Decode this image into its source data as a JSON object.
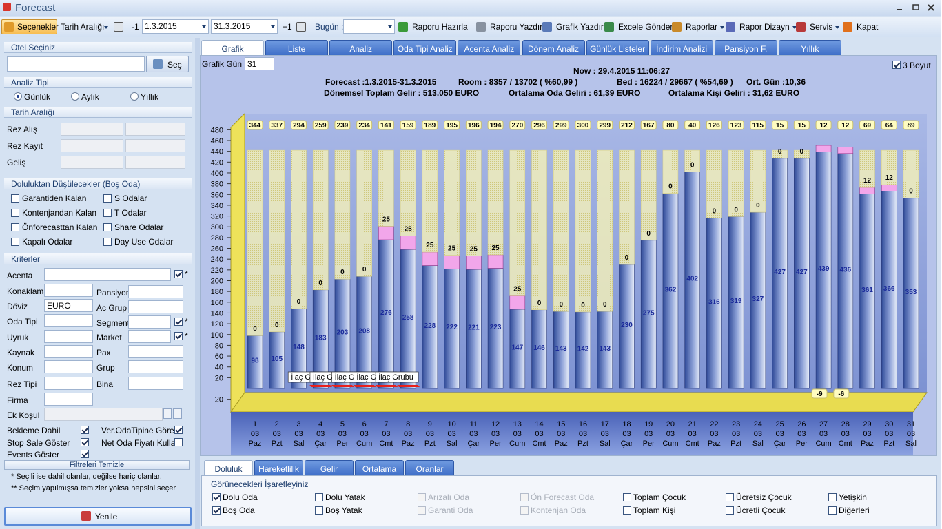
{
  "window": {
    "title": "Forecast"
  },
  "toolbar": {
    "options": "Seçenekler",
    "date_range": "Tarih Aralığı",
    "prev": "-1",
    "start": "1.3.2015",
    "end": "31.3.2015",
    "next": "+1",
    "today": "Bugün :",
    "buttons": [
      "Raporu Hazırla",
      "Raporu Yazdır",
      "Grafik Yazdır",
      "Excele Gönder",
      "Raporlar",
      "Rapor Dizayn",
      "Servis",
      "Kapat"
    ]
  },
  "left": {
    "hotel": {
      "title": "Otel Seçiniz",
      "button": "Seç"
    },
    "analysis": {
      "title": "Analiz Tipi",
      "options": [
        "Günlük",
        "Aylık",
        "Yıllık"
      ],
      "selected": 0
    },
    "dates": {
      "title": "Tarih Aralığı",
      "rows": [
        "Rez Alış",
        "Rez Kayıt",
        "Geliş"
      ]
    },
    "deduct": {
      "title": "Doluluktan Düşülecekler (Boş Oda)",
      "items": [
        "Garantiden Kalan",
        "S Odalar",
        "Kontenjandan Kalan",
        "T Odalar",
        "Önforecasttan Kalan",
        "Share Odalar",
        "Kapalı Odalar",
        "Day Use Odalar"
      ]
    },
    "criteria": {
      "title": "Kriterler",
      "fields": [
        {
          "label": "Acenta",
          "checked": true,
          "mark": "*"
        },
        {
          "label": "Konaklama"
        },
        {
          "label": "Pansiyon"
        },
        {
          "label": "Döviz",
          "value": "EURO"
        },
        {
          "label": "Ac Grup"
        },
        {
          "label": "Oda Tipi"
        },
        {
          "label": "Segment",
          "checked": true,
          "mark": "*"
        },
        {
          "label": "Uyruk"
        },
        {
          "label": "Market",
          "checked": true,
          "mark": "*"
        },
        {
          "label": "Kaynak"
        },
        {
          "label": "Pax"
        },
        {
          "label": "Konum"
        },
        {
          "label": "Grup"
        },
        {
          "label": "Rez Tipi"
        },
        {
          "label": "Bina"
        },
        {
          "label": "Firma"
        },
        {
          "label": "Ek Koşul"
        }
      ]
    },
    "options": [
      {
        "label": "Bekleme Dahil",
        "checked": true
      },
      {
        "label": "Ver.OdaTipine Göre",
        "checked": true
      },
      {
        "label": "Stop Sale Göster",
        "checked": true
      },
      {
        "label": "Net Oda Fiyatı Kullan",
        "checked": false
      },
      {
        "label": "Events Göster",
        "checked": true
      }
    ],
    "clear": "Filtreleri Temizle",
    "notes": [
      "*  Seçili ise dahil olanlar, değilse hariç olanlar.",
      "** Seçim yapılmışsa temizler yoksa hepsini seçer"
    ],
    "refresh": "Yenile"
  },
  "tabs": {
    "items": [
      "Grafik",
      "Liste",
      "Analiz",
      "Oda Tipi Analiz",
      "Acenta Analiz",
      "Dönem Analiz",
      "Günlük Listeler",
      "İndirim Analizi",
      "Pansiyon F.",
      "Yıllık"
    ],
    "active": 0
  },
  "chart_panel": {
    "days_label": "Grafik Gün",
    "days": 31,
    "three_d_label": "3 Boyut",
    "three_d": true,
    "now": "Now : 29.4.2015 11:06:27",
    "period": "Forecast :1.3.2015-31.3.2015",
    "room": "Room : 8357 / 13702 ( %60,99 )",
    "bed": "Bed : 16224 / 29667 ( %54,69 )",
    "avg_days": "Ort. Gün :10,36",
    "income": "Dönemsel Toplam Gelir : 513.050 EURO",
    "avg_room": "Ortalama Oda Geliri : 61,39 EURO",
    "avg_person": "Ortalama Kişi Geliri : 31,62 EURO"
  },
  "chart_data": {
    "type": "bar",
    "stacked": true,
    "categories": [
      "1",
      "2",
      "3",
      "4",
      "5",
      "6",
      "7",
      "8",
      "9",
      "10",
      "11",
      "12",
      "13",
      "14",
      "15",
      "16",
      "17",
      "18",
      "19",
      "20",
      "21",
      "22",
      "23",
      "24",
      "25",
      "26",
      "27",
      "28",
      "29",
      "30",
      "31"
    ],
    "months": [
      "03",
      "03",
      "03",
      "03",
      "03",
      "03",
      "03",
      "03",
      "03",
      "03",
      "03",
      "03",
      "03",
      "03",
      "03",
      "03",
      "03",
      "03",
      "03",
      "03",
      "03",
      "03",
      "03",
      "03",
      "03",
      "03",
      "03",
      "03",
      "03",
      "03",
      "03"
    ],
    "weekdays": [
      "Paz",
      "Pzt",
      "Sal",
      "Çar",
      "Per",
      "Cum",
      "Cmt",
      "Paz",
      "Pzt",
      "Sal",
      "Çar",
      "Per",
      "Cum",
      "Cmt",
      "Paz",
      "Pzt",
      "Sal",
      "Çar",
      "Per",
      "Cum",
      "Cmt",
      "Paz",
      "Pzt",
      "Sal",
      "Çar",
      "Per",
      "Cum",
      "Cmt",
      "Paz",
      "Pzt",
      "Sal"
    ],
    "series": [
      {
        "name": "Dolu Oda",
        "color": "#4a64b0",
        "values": [
          98,
          105,
          148,
          183,
          203,
          208,
          276,
          258,
          228,
          222,
          221,
          223,
          147,
          146,
          143,
          142,
          143,
          230,
          275,
          362,
          402,
          316,
          319,
          327,
          427,
          427,
          439,
          436,
          361,
          366,
          353
        ]
      },
      {
        "name": "Boş Oda",
        "color": "#f3eea0",
        "values": [
          344,
          337,
          294,
          259,
          239,
          234,
          141,
          159,
          189,
          195,
          196,
          194,
          270,
          296,
          299,
          300,
          299,
          212,
          167,
          80,
          40,
          126,
          123,
          115,
          15,
          15,
          -9,
          -6,
          69,
          64,
          89
        ]
      },
      {
        "color": "#f2a6ea",
        "values": [
          0,
          0,
          0,
          0,
          0,
          0,
          25,
          25,
          25,
          25,
          25,
          25,
          25,
          0,
          0,
          0,
          0,
          0,
          0,
          0,
          0,
          0,
          0,
          0,
          0,
          0,
          12,
          12,
          12,
          12,
          0
        ]
      }
    ],
    "negative_color": "#e8201c",
    "annotations": [
      null,
      null,
      null,
      "İlaç Grubu",
      "İlaç Grubu",
      "İlaç Grubu",
      "İlaç Grubu",
      "İlaç Grubu",
      null,
      null,
      null,
      null,
      null,
      null,
      null,
      null,
      null,
      null,
      null,
      null,
      null,
      null,
      null,
      null,
      null,
      null,
      null,
      null,
      null,
      null,
      null
    ],
    "ylim": [
      -30,
      500
    ],
    "yticks": [
      -20,
      20,
      40,
      60,
      80,
      100,
      120,
      140,
      160,
      180,
      200,
      220,
      240,
      260,
      280,
      300,
      320,
      340,
      360,
      380,
      400,
      420,
      440,
      460,
      480
    ]
  },
  "bottom_tabs": {
    "items": [
      "Doluluk",
      "Hareketlilik",
      "Gelir",
      "Ortalama",
      "Oranlar"
    ],
    "active": 0
  },
  "visible": {
    "title": "Görünecekleri İşaretleyiniz",
    "items": [
      {
        "label": "Dolu Oda",
        "checked": true,
        "enabled": true
      },
      {
        "label": "Boş Oda",
        "checked": true,
        "enabled": true
      },
      {
        "label": "Dolu Yatak",
        "checked": false,
        "enabled": true
      },
      {
        "label": "Boş Yatak",
        "checked": false,
        "enabled": true
      },
      {
        "label": "Arızalı Oda",
        "checked": false,
        "enabled": false
      },
      {
        "label": "Garanti Oda",
        "checked": false,
        "enabled": false
      },
      {
        "label": "Ön Forecast Oda",
        "checked": false,
        "enabled": false
      },
      {
        "label": "Kontenjan Oda",
        "checked": false,
        "enabled": false
      },
      {
        "label": "Toplam Çocuk",
        "checked": false,
        "enabled": true
      },
      {
        "label": "Toplam Kişi",
        "checked": false,
        "enabled": true
      },
      {
        "label": "Ücretsiz Çocuk",
        "checked": false,
        "enabled": true
      },
      {
        "label": "Ücretli Çocuk",
        "checked": false,
        "enabled": true
      },
      {
        "label": "Yetişkin",
        "checked": false,
        "enabled": true
      },
      {
        "label": "Diğerleri",
        "checked": false,
        "enabled": true
      }
    ]
  }
}
